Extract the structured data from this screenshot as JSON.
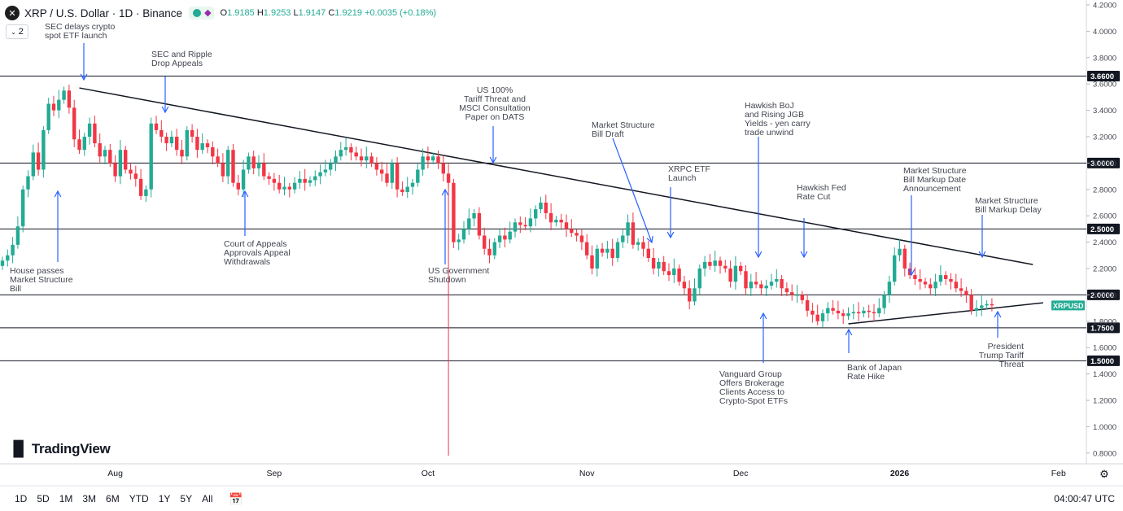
{
  "header": {
    "symbol_title": "XRP / U.S. Dollar · 1D · Binance",
    "open_label": "O",
    "open": "1.9185",
    "high_label": "H",
    "high": "1.9253",
    "low_label": "L",
    "low": "1.9147",
    "close_label": "C",
    "close": "1.9219",
    "change": "+0.0035 (+0.18%)",
    "indicator_count": "2"
  },
  "brand": {
    "name": "TradingView"
  },
  "bottom": {
    "timeframes": [
      "1D",
      "5D",
      "1M",
      "3M",
      "6M",
      "YTD",
      "1Y",
      "5Y",
      "All"
    ],
    "clock": "04:00:47 UTC"
  },
  "colors": {
    "up": "#22ab94",
    "down": "#f23645",
    "arrow": "#2962ff",
    "price_tag": "#22ab94"
  },
  "chart_data": {
    "type": "candlestick",
    "symbol": "XRPUSD",
    "ylim": [
      0.8,
      4.2
    ],
    "y_ticks": [
      "4.2000",
      "4.0000",
      "3.8000",
      "3.6000",
      "3.4000",
      "3.2000",
      "3.0000",
      "2.8000",
      "2.6000",
      "2.4000",
      "2.2000",
      "2.0000",
      "1.8000",
      "1.6000",
      "1.4000",
      "1.2000",
      "1.0000",
      "0.8000"
    ],
    "x_ticks": [
      {
        "label": "Aug",
        "i": 22,
        "bold": false
      },
      {
        "label": "Sep",
        "i": 53,
        "bold": false
      },
      {
        "label": "Oct",
        "i": 83,
        "bold": false
      },
      {
        "label": "Nov",
        "i": 114,
        "bold": false
      },
      {
        "label": "Dec",
        "i": 144,
        "bold": false
      },
      {
        "label": "2026",
        "i": 175,
        "bold": true
      },
      {
        "label": "Feb",
        "i": 206,
        "bold": false
      }
    ],
    "closes": [
      2.26,
      2.3,
      2.38,
      2.52,
      2.8,
      2.9,
      3.08,
      2.95,
      3.25,
      3.45,
      3.4,
      3.48,
      3.55,
      3.42,
      3.18,
      3.1,
      3.2,
      3.3,
      3.15,
      3.05,
      3.1,
      3.0,
      2.9,
      3.1,
      2.95,
      2.92,
      2.88,
      2.75,
      2.8,
      3.3,
      3.25,
      3.2,
      3.15,
      3.2,
      3.1,
      3.05,
      3.25,
      3.2,
      3.1,
      3.15,
      3.12,
      3.05,
      3.0,
      2.9,
      3.1,
      2.85,
      2.8,
      2.95,
      3.05,
      2.96,
      3.0,
      2.9,
      2.88,
      2.85,
      2.8,
      2.82,
      2.8,
      2.85,
      2.88,
      2.85,
      2.87,
      2.9,
      2.93,
      2.95,
      3.0,
      3.05,
      3.1,
      3.12,
      3.08,
      3.05,
      3.02,
      3.05,
      3.0,
      2.95,
      2.92,
      2.85,
      3.0,
      2.8,
      2.78,
      2.82,
      2.85,
      2.95,
      3.05,
      3.02,
      3.05,
      3.0,
      2.92,
      2.85,
      2.4,
      2.42,
      2.5,
      2.58,
      2.62,
      2.45,
      2.35,
      2.3,
      2.4,
      2.45,
      2.42,
      2.48,
      2.55,
      2.53,
      2.52,
      2.58,
      2.65,
      2.7,
      2.62,
      2.55,
      2.57,
      2.55,
      2.5,
      2.47,
      2.45,
      2.4,
      2.3,
      2.2,
      2.35,
      2.32,
      2.35,
      2.28,
      2.4,
      2.45,
      2.55,
      2.38,
      2.4,
      2.35,
      2.28,
      2.2,
      2.25,
      2.18,
      2.15,
      2.2,
      2.1,
      2.05,
      1.95,
      2.05,
      2.2,
      2.25,
      2.22,
      2.26,
      2.22,
      2.2,
      2.1,
      2.22,
      2.18,
      2.05,
      2.1,
      2.08,
      2.05,
      2.07,
      2.1,
      2.12,
      2.05,
      2.02,
      2.0,
      2.0,
      1.96,
      1.88,
      1.85,
      1.8,
      1.86,
      1.9,
      1.88,
      1.86,
      1.84,
      1.86,
      1.87,
      1.86,
      1.88,
      1.87,
      1.86,
      1.9,
      2.0,
      2.1,
      2.3,
      2.35,
      2.2,
      2.15,
      2.12,
      2.1,
      2.08,
      2.05,
      2.1,
      2.15,
      2.12,
      2.1,
      2.05,
      2.03,
      2.0,
      1.88,
      1.9,
      1.92,
      1.93,
      1.92
    ],
    "annotations": [
      {
        "text": [
          "SEC delays crypto",
          "spot ETF launch"
        ],
        "align": "left"
      },
      {
        "text": [
          "SEC and Ripple",
          "Drop Appeals"
        ],
        "align": "left"
      },
      {
        "text": [
          "House passes",
          "Market Structure",
          "Bill"
        ],
        "align": "left"
      },
      {
        "text": [
          "Court of Appeals",
          "Approvals Appeal",
          "Withdrawals"
        ],
        "align": "left"
      },
      {
        "text": [
          "US 100%",
          "Tariff Threat and",
          "MSCI Consultation",
          "Paper on DATS"
        ],
        "align": "center"
      },
      {
        "text": [
          "US Government",
          "Shutdown"
        ],
        "align": "left"
      },
      {
        "text": [
          "Market Structure",
          "Bill Draft"
        ],
        "align": "left"
      },
      {
        "text": [
          "XRPC ETF",
          "Launch"
        ],
        "align": "left"
      },
      {
        "text": [
          "Hawkish BoJ",
          "and Rising JGB",
          "Yields - yen carry",
          "trade unwind"
        ],
        "align": "left"
      },
      {
        "text": [
          "Hawkish Fed",
          "Rate Cut"
        ],
        "align": "left"
      },
      {
        "text": [
          "Market Structure",
          "Bill Markup Date",
          "Announcement"
        ],
        "align": "left"
      },
      {
        "text": [
          "Market Structure",
          "Bill Markup Delay"
        ],
        "align": "left"
      },
      {
        "text": [
          "Vanguard Group",
          "Offers Brokerage",
          "Clients Access to",
          "Crypto-Spot ETFs"
        ],
        "align": "left"
      },
      {
        "text": [
          "Bank of Japan",
          "Rate Hike"
        ],
        "align": "left"
      },
      {
        "text": [
          "President",
          "Trump Tariff",
          "Threat"
        ],
        "align": "right"
      }
    ],
    "levels": [
      "3.6600",
      "3.0000",
      "2.5000",
      "2.0000",
      "1.7500",
      "1.5000"
    ],
    "last_price_label": "XRPUSD",
    "grid": false,
    "legend": "none"
  }
}
